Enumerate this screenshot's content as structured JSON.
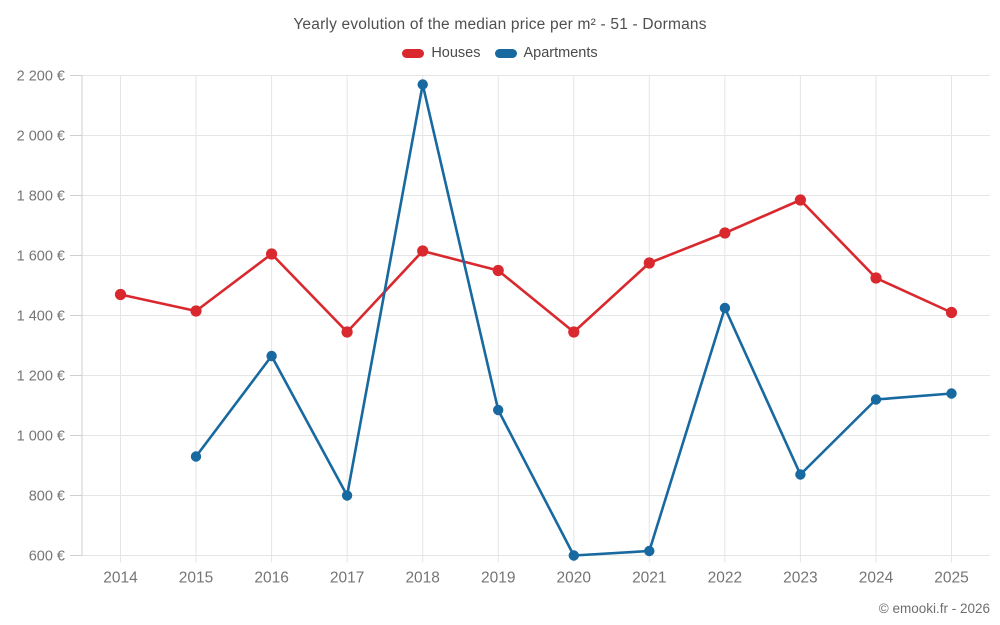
{
  "header": {
    "title": "Yearly evolution of the median price per m² - 51 - Dormans"
  },
  "legend": {
    "items": [
      {
        "label": "Houses",
        "color": "#d9292e"
      },
      {
        "label": "Apartments",
        "color": "#17699f"
      }
    ]
  },
  "footer": {
    "credit": "© emooki.fr - 2026"
  },
  "colors": {
    "houses": "#d9292e",
    "apartments": "#17699f",
    "gridline": "#e5e5e5",
    "axis": "#cfcfcf",
    "tick_text": "#757575",
    "title_text": "#4f4f4f",
    "background": "#ffffff"
  },
  "chart_data": {
    "type": "line",
    "title": "Yearly evolution of the median price per m² - 51 - Dormans",
    "categories": [
      "2014",
      "2015",
      "2016",
      "2017",
      "2018",
      "2019",
      "2020",
      "2021",
      "2022",
      "2023",
      "2024",
      "2025"
    ],
    "series": [
      {
        "name": "Houses",
        "color": "#d9292e",
        "values": [
          1470,
          1415,
          1605,
          1345,
          1615,
          1550,
          1345,
          1575,
          1675,
          1785,
          1525,
          1410
        ]
      },
      {
        "name": "Apartments",
        "color": "#17699f",
        "values": [
          null,
          930,
          1265,
          800,
          2170,
          1085,
          600,
          615,
          1425,
          870,
          1120,
          1140
        ]
      }
    ],
    "xlabel": "",
    "ylabel": "",
    "ylim": [
      600,
      2200
    ],
    "yticks": [
      600,
      800,
      1000,
      1200,
      1400,
      1600,
      1800,
      2000,
      2200
    ],
    "ytick_labels": [
      "600 €",
      "800 €",
      "1 000 €",
      "1 200 €",
      "1 400 €",
      "1 600 €",
      "1 800 €",
      "2 000 €",
      "2 200 €"
    ],
    "grid": true,
    "legend_position": "top",
    "currency": "€"
  }
}
